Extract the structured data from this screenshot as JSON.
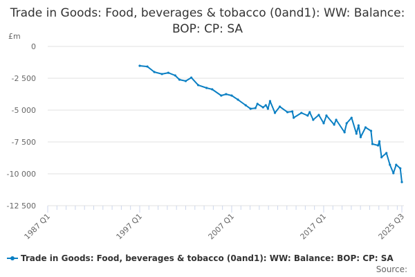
{
  "chart_data": {
    "type": "line",
    "title": "Trade in Goods: Food, beverages & tobacco (0and1): WW: Balance: BOP: CP: SA",
    "ylabel": "£m",
    "xlabel": "",
    "ylim": [
      -12500,
      0
    ],
    "yticks": [
      0,
      -2500,
      -5000,
      -7500,
      -10000,
      -12500
    ],
    "ytick_labels": [
      "0",
      "-2 500",
      "-5 000",
      "-7 500",
      "-10 000",
      "-12 500"
    ],
    "xlim": [
      1987.0,
      2025.5
    ],
    "xticks": [
      1987.0,
      1997.0,
      2007.0,
      2017.0,
      2025.5
    ],
    "xtick_labels": [
      "1987 Q1",
      "1997 Q1",
      "2007 Q1",
      "2017 Q1",
      "2025 Q3"
    ],
    "grid": true,
    "legend_position": "bottom-left",
    "series": [
      {
        "name": "Trade in Goods: Food, beverages & tobacco (0and1): WW: Balance: BOP: CP: SA",
        "color": "#0a7fc3",
        "x": [
          1997.0,
          1997.83,
          1998.59,
          1999.42,
          2000.11,
          2000.86,
          2001.32,
          2002.0,
          2002.61,
          2003.36,
          2004.27,
          2004.88,
          2005.86,
          2006.39,
          2007.0,
          2007.68,
          2008.52,
          2009.05,
          2009.58,
          2009.8,
          2010.41,
          2010.71,
          2010.94,
          2011.17,
          2011.7,
          2012.23,
          2013.06,
          2013.59,
          2013.74,
          2014.58,
          2015.26,
          2015.48,
          2015.86,
          2016.47,
          2017.0,
          2017.3,
          2018.14,
          2018.36,
          2019.27,
          2019.5,
          2020.03,
          2020.56,
          2020.79,
          2021.02,
          2021.55,
          2022.15,
          2022.3,
          2022.91,
          2023.06,
          2023.29,
          2023.82,
          2024.2,
          2024.58,
          2024.88,
          2025.33,
          2025.5
        ],
        "values": [
          -1520,
          -1580,
          -2010,
          -2170,
          -2070,
          -2280,
          -2610,
          -2720,
          -2450,
          -3040,
          -3260,
          -3370,
          -3860,
          -3750,
          -3860,
          -4180,
          -4620,
          -4890,
          -4840,
          -4510,
          -4780,
          -4620,
          -4890,
          -4290,
          -5220,
          -4730,
          -5160,
          -5110,
          -5600,
          -5220,
          -5430,
          -5160,
          -5760,
          -5380,
          -6030,
          -5430,
          -6140,
          -5760,
          -6740,
          -6030,
          -5600,
          -6850,
          -6200,
          -7120,
          -6360,
          -6630,
          -7660,
          -7770,
          -7450,
          -8700,
          -8370,
          -9290,
          -9950,
          -9290,
          -9570,
          -10650
        ]
      }
    ],
    "source_label": "Source:"
  }
}
